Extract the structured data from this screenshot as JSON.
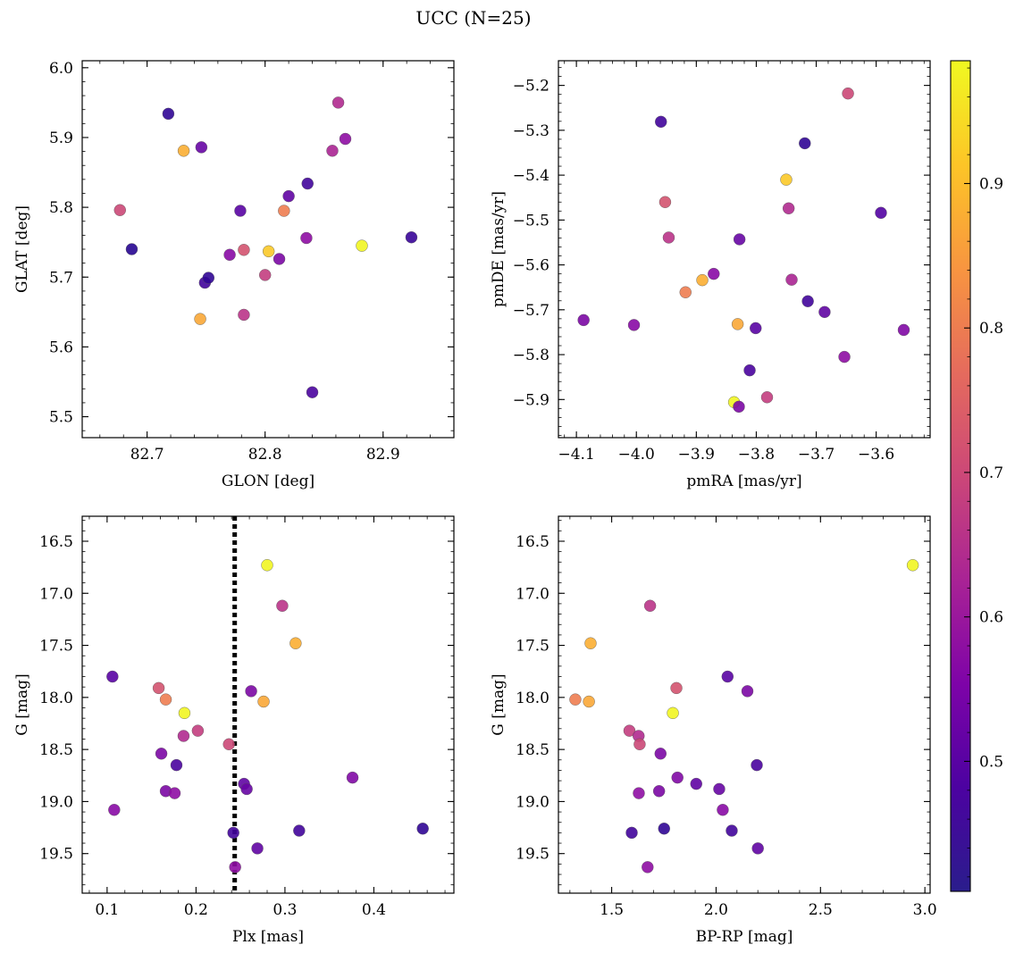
{
  "title": "UCC (N=25)",
  "colorbar": {
    "colormap": "plasma",
    "range": [
      0.41,
      0.985
    ],
    "ticks": [
      "0.5",
      "0.6",
      "0.7",
      "0.8",
      "0.9"
    ],
    "tick_values": [
      0.5,
      0.6,
      0.7,
      0.8,
      0.9
    ]
  },
  "chart_data": [
    {
      "type": "scatter",
      "xlabel": "GLON [deg]",
      "ylabel": "GLAT [deg]",
      "xlim": [
        82.645,
        82.96
      ],
      "ylim": [
        5.47,
        6.01
      ],
      "xticks": [
        "82.7",
        "82.8",
        "82.9"
      ],
      "xtick_values": [
        82.7,
        82.8,
        82.9
      ],
      "yticks": [
        "5.5",
        "5.6",
        "5.7",
        "5.8",
        "5.9",
        "6.0"
      ],
      "ytick_values": [
        5.5,
        5.6,
        5.7,
        5.8,
        5.9,
        6.0
      ],
      "points": [
        {
          "x": 82.718,
          "y": 5.934,
          "c": 0.45
        },
        {
          "x": 82.731,
          "y": 5.881,
          "c": 0.88
        },
        {
          "x": 82.746,
          "y": 5.886,
          "c": 0.52
        },
        {
          "x": 82.677,
          "y": 5.796,
          "c": 0.7
        },
        {
          "x": 82.687,
          "y": 5.74,
          "c": 0.44
        },
        {
          "x": 82.745,
          "y": 5.64,
          "c": 0.87
        },
        {
          "x": 82.749,
          "y": 5.692,
          "c": 0.47
        },
        {
          "x": 82.752,
          "y": 5.699,
          "c": 0.45
        },
        {
          "x": 82.77,
          "y": 5.732,
          "c": 0.57
        },
        {
          "x": 82.779,
          "y": 5.795,
          "c": 0.5
        },
        {
          "x": 82.782,
          "y": 5.739,
          "c": 0.72
        },
        {
          "x": 82.782,
          "y": 5.646,
          "c": 0.66
        },
        {
          "x": 82.8,
          "y": 5.703,
          "c": 0.68
        },
        {
          "x": 82.803,
          "y": 5.737,
          "c": 0.92
        },
        {
          "x": 82.812,
          "y": 5.726,
          "c": 0.55
        },
        {
          "x": 82.816,
          "y": 5.795,
          "c": 0.8
        },
        {
          "x": 82.82,
          "y": 5.816,
          "c": 0.51
        },
        {
          "x": 82.835,
          "y": 5.756,
          "c": 0.58
        },
        {
          "x": 82.836,
          "y": 5.834,
          "c": 0.47
        },
        {
          "x": 82.84,
          "y": 5.535,
          "c": 0.48
        },
        {
          "x": 82.857,
          "y": 5.881,
          "c": 0.63
        },
        {
          "x": 82.862,
          "y": 5.95,
          "c": 0.64
        },
        {
          "x": 82.868,
          "y": 5.898,
          "c": 0.58
        },
        {
          "x": 82.882,
          "y": 5.745,
          "c": 0.98
        },
        {
          "x": 82.924,
          "y": 5.757,
          "c": 0.46
        }
      ]
    },
    {
      "type": "scatter",
      "xlabel": "pmRA [mas/yr]",
      "ylabel": "pmDE [mas/yr]",
      "xlim": [
        -4.13,
        -3.51
      ],
      "ylim": [
        -5.985,
        -5.145
      ],
      "xticks": [
        "−4.1",
        "−4.0",
        "−3.9",
        "−3.8",
        "−3.7",
        "−3.6"
      ],
      "xtick_values": [
        -4.1,
        -4.0,
        -3.9,
        -3.8,
        -3.7,
        -3.6
      ],
      "yticks": [
        "−5.9",
        "−5.8",
        "−5.7",
        "−5.6",
        "−5.5",
        "−5.4",
        "−5.3",
        "−5.2"
      ],
      "ytick_values": [
        -5.9,
        -5.8,
        -5.7,
        -5.6,
        -5.5,
        -5.4,
        -5.3,
        -5.2
      ],
      "points": [
        {
          "x": -3.959,
          "y": -5.281,
          "c": 0.47
        },
        {
          "x": -3.952,
          "y": -5.46,
          "c": 0.72
        },
        {
          "x": -3.946,
          "y": -5.539,
          "c": 0.66
        },
        {
          "x": -4.088,
          "y": -5.723,
          "c": 0.55
        },
        {
          "x": -4.004,
          "y": -5.734,
          "c": 0.57
        },
        {
          "x": -3.918,
          "y": -5.661,
          "c": 0.8
        },
        {
          "x": -3.89,
          "y": -5.634,
          "c": 0.88
        },
        {
          "x": -3.871,
          "y": -5.62,
          "c": 0.57
        },
        {
          "x": -3.828,
          "y": -5.543,
          "c": 0.52
        },
        {
          "x": -3.831,
          "y": -5.732,
          "c": 0.87
        },
        {
          "x": -3.801,
          "y": -5.741,
          "c": 0.5
        },
        {
          "x": -3.811,
          "y": -5.835,
          "c": 0.48
        },
        {
          "x": -3.837,
          "y": -5.906,
          "c": 0.98
        },
        {
          "x": -3.829,
          "y": -5.916,
          "c": 0.55
        },
        {
          "x": -3.782,
          "y": -5.895,
          "c": 0.68
        },
        {
          "x": -3.75,
          "y": -5.41,
          "c": 0.92
        },
        {
          "x": -3.746,
          "y": -5.474,
          "c": 0.64
        },
        {
          "x": -3.741,
          "y": -5.633,
          "c": 0.63
        },
        {
          "x": -3.719,
          "y": -5.329,
          "c": 0.45
        },
        {
          "x": -3.714,
          "y": -5.681,
          "c": 0.47
        },
        {
          "x": -3.686,
          "y": -5.705,
          "c": 0.51
        },
        {
          "x": -3.653,
          "y": -5.805,
          "c": 0.58
        },
        {
          "x": -3.647,
          "y": -5.218,
          "c": 0.7
        },
        {
          "x": -3.592,
          "y": -5.484,
          "c": 0.49
        },
        {
          "x": -3.554,
          "y": -5.745,
          "c": 0.56
        }
      ]
    },
    {
      "type": "scatter",
      "xlabel": "Plx [mas]",
      "ylabel": "G [mag]",
      "xlim": [
        0.072,
        0.49
      ],
      "ylim": [
        19.88,
        16.26
      ],
      "y_inverted": true,
      "xticks": [
        "0.1",
        "0.2",
        "0.3",
        "0.4"
      ],
      "xtick_values": [
        0.1,
        0.2,
        0.3,
        0.4
      ],
      "yticks": [
        "16.5",
        "17.0",
        "17.5",
        "18.0",
        "18.5",
        "19.0",
        "19.5"
      ],
      "ytick_values": [
        16.5,
        17.0,
        17.5,
        18.0,
        18.5,
        19.0,
        19.5
      ],
      "vline": 0.2435,
      "points": [
        {
          "x": 0.106,
          "y": 17.8,
          "c": 0.5
        },
        {
          "x": 0.108,
          "y": 19.08,
          "c": 0.57
        },
        {
          "x": 0.158,
          "y": 17.91,
          "c": 0.72
        },
        {
          "x": 0.161,
          "y": 18.54,
          "c": 0.55
        },
        {
          "x": 0.166,
          "y": 18.02,
          "c": 0.8
        },
        {
          "x": 0.166,
          "y": 18.9,
          "c": 0.55
        },
        {
          "x": 0.176,
          "y": 18.92,
          "c": 0.58
        },
        {
          "x": 0.178,
          "y": 18.65,
          "c": 0.48
        },
        {
          "x": 0.186,
          "y": 18.37,
          "c": 0.64
        },
        {
          "x": 0.187,
          "y": 18.15,
          "c": 0.98
        },
        {
          "x": 0.202,
          "y": 18.32,
          "c": 0.68
        },
        {
          "x": 0.237,
          "y": 18.45,
          "c": 0.7
        },
        {
          "x": 0.242,
          "y": 19.3,
          "c": 0.47
        },
        {
          "x": 0.244,
          "y": 19.63,
          "c": 0.58
        },
        {
          "x": 0.254,
          "y": 18.83,
          "c": 0.51
        },
        {
          "x": 0.257,
          "y": 18.88,
          "c": 0.52
        },
        {
          "x": 0.262,
          "y": 17.94,
          "c": 0.55
        },
        {
          "x": 0.269,
          "y": 19.45,
          "c": 0.51
        },
        {
          "x": 0.276,
          "y": 18.04,
          "c": 0.87
        },
        {
          "x": 0.28,
          "y": 16.73,
          "c": 0.98
        },
        {
          "x": 0.297,
          "y": 17.12,
          "c": 0.66
        },
        {
          "x": 0.312,
          "y": 17.48,
          "c": 0.88
        },
        {
          "x": 0.316,
          "y": 19.28,
          "c": 0.47
        },
        {
          "x": 0.376,
          "y": 18.77,
          "c": 0.56
        },
        {
          "x": 0.455,
          "y": 19.26,
          "c": 0.45
        }
      ]
    },
    {
      "type": "scatter",
      "xlabel": "BP-RP [mag]",
      "ylabel": "G [mag]",
      "xlim": [
        1.245,
        3.025
      ],
      "ylim": [
        19.88,
        16.26
      ],
      "y_inverted": true,
      "xticks": [
        "1.5",
        "2.0",
        "2.5",
        "3.0"
      ],
      "xtick_values": [
        1.5,
        2.0,
        2.5,
        3.0
      ],
      "yticks": [
        "16.5",
        "17.0",
        "17.5",
        "18.0",
        "18.5",
        "19.0",
        "19.5"
      ],
      "ytick_values": [
        16.5,
        17.0,
        17.5,
        18.0,
        18.5,
        19.0,
        19.5
      ],
      "points": [
        {
          "x": 2.942,
          "y": 16.73,
          "c": 0.98
        },
        {
          "x": 1.684,
          "y": 17.12,
          "c": 0.66
        },
        {
          "x": 1.399,
          "y": 17.48,
          "c": 0.88
        },
        {
          "x": 2.055,
          "y": 17.8,
          "c": 0.5
        },
        {
          "x": 1.81,
          "y": 17.91,
          "c": 0.72
        },
        {
          "x": 2.15,
          "y": 17.94,
          "c": 0.55
        },
        {
          "x": 1.326,
          "y": 18.02,
          "c": 0.8
        },
        {
          "x": 1.391,
          "y": 18.04,
          "c": 0.87
        },
        {
          "x": 1.793,
          "y": 18.15,
          "c": 0.98
        },
        {
          "x": 1.585,
          "y": 18.32,
          "c": 0.68
        },
        {
          "x": 1.629,
          "y": 18.37,
          "c": 0.64
        },
        {
          "x": 1.634,
          "y": 18.45,
          "c": 0.7
        },
        {
          "x": 1.734,
          "y": 18.54,
          "c": 0.55
        },
        {
          "x": 2.195,
          "y": 18.65,
          "c": 0.48
        },
        {
          "x": 1.815,
          "y": 18.77,
          "c": 0.56
        },
        {
          "x": 1.905,
          "y": 18.83,
          "c": 0.51
        },
        {
          "x": 2.015,
          "y": 18.88,
          "c": 0.52
        },
        {
          "x": 1.727,
          "y": 18.9,
          "c": 0.55
        },
        {
          "x": 1.63,
          "y": 18.92,
          "c": 0.58
        },
        {
          "x": 2.032,
          "y": 19.08,
          "c": 0.57
        },
        {
          "x": 1.751,
          "y": 19.26,
          "c": 0.45
        },
        {
          "x": 2.075,
          "y": 19.28,
          "c": 0.47
        },
        {
          "x": 1.596,
          "y": 19.3,
          "c": 0.47
        },
        {
          "x": 2.2,
          "y": 19.45,
          "c": 0.51
        },
        {
          "x": 1.672,
          "y": 19.63,
          "c": 0.58
        }
      ]
    }
  ]
}
